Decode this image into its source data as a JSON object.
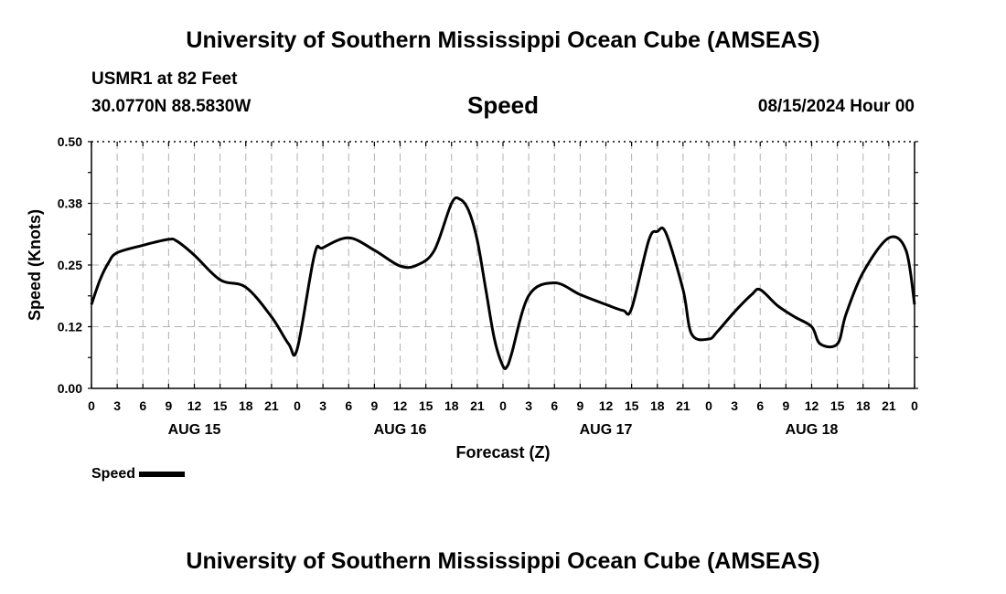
{
  "header": {
    "title": "University of Southern Mississippi Ocean Cube (AMSEAS)",
    "station": "USMR1 at 82 Feet",
    "coords": "30.0770N  88.5830W",
    "variable": "Speed",
    "datetime": "08/15/2024 Hour 00"
  },
  "footer": {
    "title": "University of Southern Mississippi Ocean Cube (AMSEAS)"
  },
  "legend": {
    "label": "Speed",
    "color": "#000000"
  },
  "chart_data": {
    "type": "line",
    "xlabel": "Forecast (Z)",
    "ylabel": "Speed (Knots)",
    "ylim": [
      0,
      0.5
    ],
    "xlim": [
      0,
      96
    ],
    "yticks": [
      "0.00",
      "0.12",
      "0.25",
      "0.38",
      "0.50"
    ],
    "xtick_labels": [
      "0",
      "3",
      "6",
      "9",
      "12",
      "15",
      "18",
      "21",
      "0",
      "3",
      "6",
      "9",
      "12",
      "15",
      "18",
      "21",
      "0",
      "3",
      "6",
      "9",
      "12",
      "15",
      "18",
      "21",
      "0",
      "3",
      "6",
      "9",
      "12",
      "15",
      "18",
      "21",
      "0"
    ],
    "day_labels": [
      {
        "label": "AUG 15",
        "hour": 12
      },
      {
        "label": "AUG 16",
        "hour": 36
      },
      {
        "label": "AUG 17",
        "hour": 60
      },
      {
        "label": "AUG 18",
        "hour": 84
      }
    ],
    "grid": true,
    "series": [
      {
        "name": "Speed",
        "color": "#000000",
        "x": [
          0,
          1,
          2,
          3,
          6,
          9,
          10,
          12,
          15,
          18,
          21,
          23,
          24,
          26,
          27,
          30,
          33,
          36,
          38,
          40,
          42,
          43,
          44,
          45,
          46,
          47,
          48,
          48.5,
          49,
          51,
          54,
          57,
          60,
          62,
          63,
          65,
          66,
          67,
          69,
          70,
          72,
          73,
          75,
          77,
          78,
          80,
          82,
          84,
          85,
          87,
          88,
          90,
          93,
          95,
          96
        ],
        "y": [
          0.17,
          0.22,
          0.255,
          0.275,
          0.29,
          0.302,
          0.298,
          0.27,
          0.22,
          0.205,
          0.145,
          0.09,
          0.08,
          0.27,
          0.285,
          0.305,
          0.28,
          0.248,
          0.25,
          0.28,
          0.375,
          0.383,
          0.36,
          0.3,
          0.2,
          0.1,
          0.045,
          0.045,
          0.07,
          0.188,
          0.214,
          0.19,
          0.17,
          0.158,
          0.162,
          0.3,
          0.318,
          0.315,
          0.2,
          0.11,
          0.1,
          0.115,
          0.155,
          0.19,
          0.2,
          0.168,
          0.145,
          0.125,
          0.09,
          0.09,
          0.15,
          0.235,
          0.305,
          0.28,
          0.17
        ]
      }
    ]
  }
}
